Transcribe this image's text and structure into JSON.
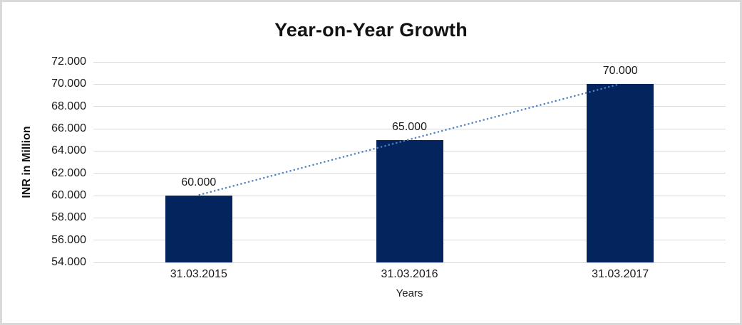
{
  "chart_data": {
    "type": "bar",
    "title": "Year-on-Year Growth",
    "xlabel": "Years",
    "ylabel": "INR in Million",
    "categories": [
      "31.03.2015",
      "31.03.2016",
      "31.03.2017"
    ],
    "values": [
      60000,
      65000,
      70000
    ],
    "value_labels": [
      "60.000",
      "65.000",
      "70.000"
    ],
    "ylim": [
      54000,
      72000
    ],
    "ytick_step": 2000,
    "ytick_labels": [
      "54.000",
      "56.000",
      "58.000",
      "60.000",
      "62.000",
      "64.000",
      "66.000",
      "68.000",
      "70.000",
      "72.000"
    ],
    "grid": true,
    "legend": false,
    "trendline": {
      "style": "dotted",
      "from_category_index": 0,
      "to_category_index": 2
    }
  },
  "colors": {
    "bar": "#04245e",
    "trendline": "#4e82c4",
    "gridline": "#d9d9d9",
    "frame_border": "#d9d9d9",
    "background": "#ffffff",
    "text": "#1a1a1a"
  }
}
